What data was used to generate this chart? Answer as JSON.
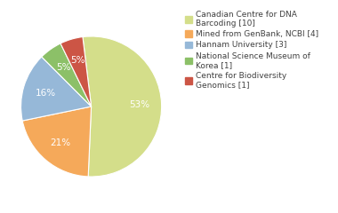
{
  "legend_labels": [
    "Canadian Centre for DNA\nBarcoding [10]",
    "Mined from GenBank, NCBI [4]",
    "Hannam University [3]",
    "National Science Museum of\nKorea [1]",
    "Centre for Biodiversity\nGenomics [1]"
  ],
  "values": [
    10,
    4,
    3,
    1,
    1
  ],
  "colors": [
    "#d4de8a",
    "#f5a95a",
    "#96b8d8",
    "#8cc068",
    "#cc5545"
  ],
  "background_color": "#ffffff",
  "text_color": "#404040",
  "startangle": 97,
  "pct_fontsize": 7.5,
  "legend_fontsize": 6.5
}
